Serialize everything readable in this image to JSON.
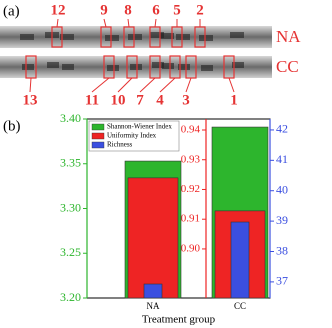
{
  "panel_a": {
    "label": "(a)",
    "lanes": [
      "NA",
      "CC"
    ],
    "band_numbers_top": [
      "12",
      "9",
      "8",
      "6",
      "5",
      "2"
    ],
    "band_numbers_bottom": [
      "13",
      "11",
      "10",
      "7",
      "4",
      "3",
      "1"
    ]
  },
  "chart_data": {
    "type": "bar",
    "panel_label": "(b)",
    "x_label": "Treatment group",
    "categories": [
      "NA",
      "CC"
    ],
    "series": [
      {
        "name": "Shannon-Wiener Index",
        "color": "#2db52d",
        "values": [
          3.353,
          3.391
        ],
        "axis": "y"
      },
      {
        "name": "Uniformity Index",
        "color": "#ee2424",
        "values": [
          0.9239,
          0.9128
        ],
        "axis": "y2"
      },
      {
        "name": "Richness",
        "color": "#3b4fe0",
        "values": [
          36.93,
          38.97
        ],
        "axis": "y3"
      }
    ],
    "ylim": [
      3.2,
      3.4
    ],
    "yticks": [
      {
        "value": 3.2,
        "label": "3.20"
      },
      {
        "value": 3.25,
        "label": "3.25"
      },
      {
        "value": 3.3,
        "label": "3.30"
      },
      {
        "value": 3.35,
        "label": "3.35"
      },
      {
        "value": 3.4,
        "label": "3.40"
      }
    ],
    "y2lim": [
      0.8835,
      0.9437
    ],
    "y2ticks": [
      {
        "value": 0.9,
        "label": "0.90"
      },
      {
        "value": 0.91,
        "label": "0.91"
      },
      {
        "value": 0.92,
        "label": "0.92"
      },
      {
        "value": 0.93,
        "label": "0.93"
      },
      {
        "value": 0.94,
        "label": "0.94"
      }
    ],
    "y3lim": [
      36.47,
      42.36
    ],
    "y3ticks": [
      37,
      38,
      39,
      40,
      41,
      42
    ],
    "legend": "upper left"
  }
}
